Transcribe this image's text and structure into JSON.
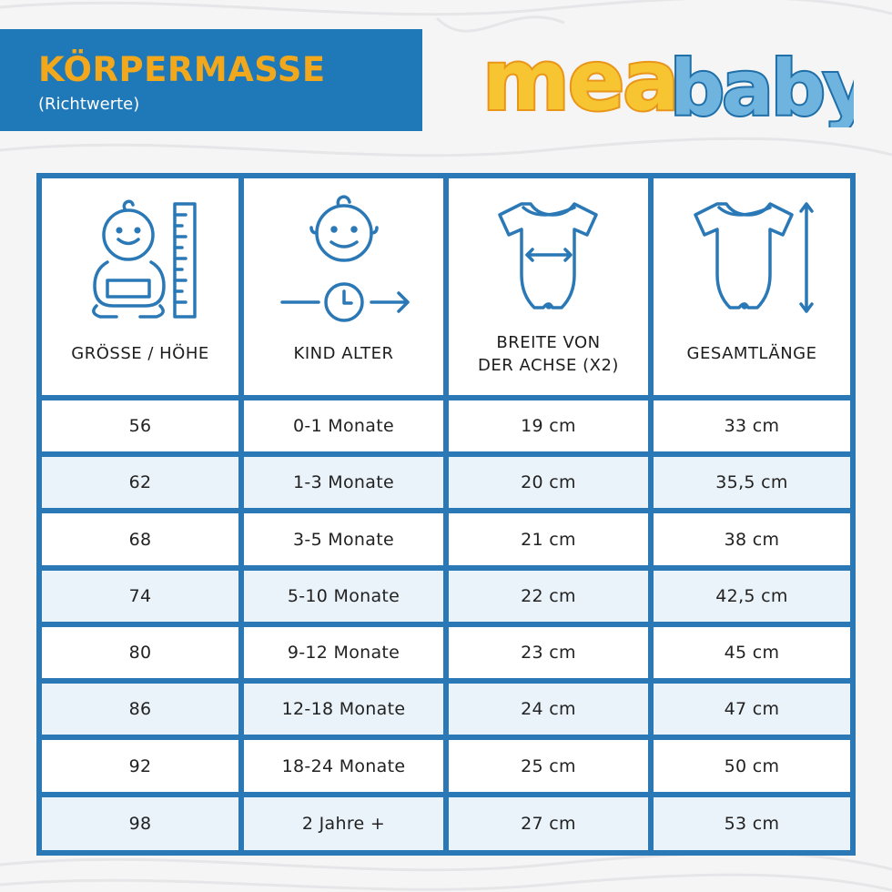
{
  "header": {
    "title": "KÖRPERMASSE",
    "subtitle": "(Richtwerte)"
  },
  "logo": {
    "word1": "mea",
    "word2": "baby"
  },
  "colors": {
    "blue": "#1f78b8",
    "orange": "#f2a81d",
    "table_border": "#2a78b6",
    "alt_row": "#eaf3fa"
  },
  "table": {
    "columns": [
      {
        "label_lines": [
          "GRÖSSE / HÖHE"
        ],
        "icon": "baby-height-icon"
      },
      {
        "label_lines": [
          "KIND ALTER"
        ],
        "icon": "baby-age-clock-icon"
      },
      {
        "label_lines": [
          "BREITE VON",
          "DER ACHSE (X2)"
        ],
        "icon": "bodysuit-width-icon"
      },
      {
        "label_lines": [
          "GESAMTLÄNGE"
        ],
        "icon": "bodysuit-length-icon"
      }
    ],
    "rows": [
      [
        "56",
        "0-1 Monate",
        "19 cm",
        "33 cm"
      ],
      [
        "62",
        "1-3 Monate",
        "20 cm",
        "35,5 cm"
      ],
      [
        "68",
        "3-5 Monate",
        "21 cm",
        "38 cm"
      ],
      [
        "74",
        "5-10 Monate",
        "22 cm",
        "42,5 cm"
      ],
      [
        "80",
        "9-12 Monate",
        "23 cm",
        "45 cm"
      ],
      [
        "86",
        "12-18 Monate",
        "24 cm",
        "47 cm"
      ],
      [
        "92",
        "18-24 Monate",
        "25 cm",
        "50 cm"
      ],
      [
        "98",
        "2 Jahre +",
        "27 cm",
        "53 cm"
      ]
    ]
  }
}
